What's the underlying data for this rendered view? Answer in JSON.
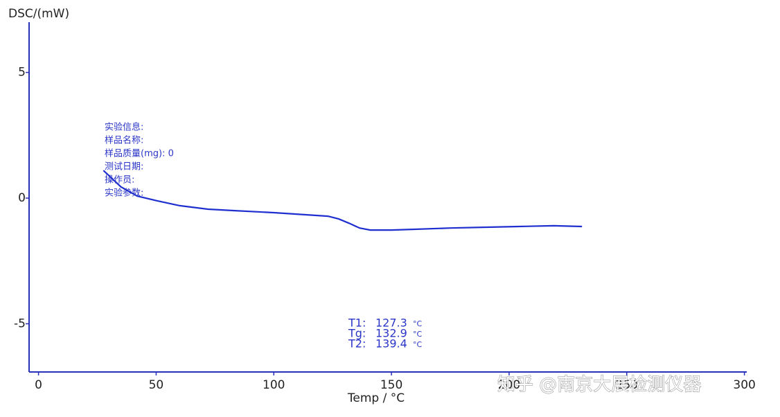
{
  "chart_data": {
    "type": "line",
    "y_label": "DSC/(mW)",
    "x_label": "Temp / °C",
    "x": [
      27.6,
      35,
      42,
      50,
      60,
      72,
      83.5,
      100,
      113,
      123,
      127.6,
      132,
      136.5,
      141,
      150,
      160,
      175,
      189,
      204,
      219,
      231
    ],
    "values": [
      1.1,
      0.45,
      0.08,
      -0.1,
      -0.3,
      -0.44,
      -0.5,
      -0.58,
      -0.66,
      -0.72,
      -0.83,
      -1.0,
      -1.19,
      -1.27,
      -1.27,
      -1.24,
      -1.19,
      -1.16,
      -1.13,
      -1.1,
      -1.13
    ],
    "color": "#1f2fcf",
    "axis_color": "#2630b8",
    "xlim": [
      -4,
      301
    ],
    "xticks": [
      0,
      50,
      100,
      150,
      200,
      250,
      300
    ],
    "ylim": [
      -7,
      7
    ],
    "yticks": [
      5,
      0,
      -5
    ],
    "info": [
      "实验信息:",
      "样品名称:",
      "样品质量(mg): 0",
      "测试日期:",
      "操作员:",
      "实验参数:"
    ],
    "results": [
      {
        "label": "T1:",
        "value": 127.3,
        "unit": "°C"
      },
      {
        "label": "Tg:",
        "value": 132.9,
        "unit": "°C"
      },
      {
        "label": "T2:",
        "value": 139.4,
        "unit": "°C"
      }
    ],
    "watermark": "知乎 @南京大展检测仪器"
  }
}
